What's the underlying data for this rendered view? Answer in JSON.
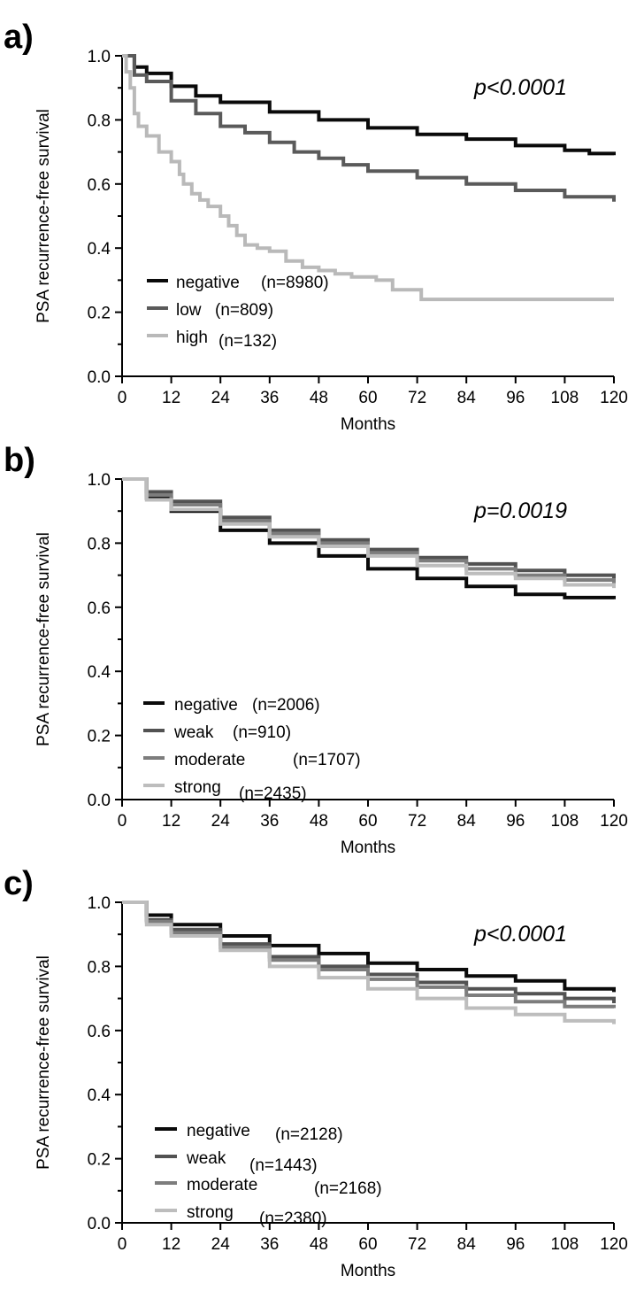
{
  "chart_data": [
    {
      "type": "line",
      "panel_label": "a)",
      "annotation": "p<0.0001",
      "xlabel": "Months",
      "ylabel": "PSA recurrence-free survival",
      "xlim": [
        0,
        120
      ],
      "ylim": [
        0,
        1
      ],
      "xticks": [
        "0",
        "12",
        "24",
        "36",
        "48",
        "60",
        "72",
        "84",
        "96",
        "108",
        "120"
      ],
      "yticks": [
        "0.0",
        "0.2",
        "0.4",
        "0.6",
        "0.8",
        "1.0"
      ],
      "grid": false,
      "legend_position": "bottom-left",
      "series": [
        {
          "name": "negative",
          "n_label": "(n=8980)",
          "color": "#0a0a0a",
          "x": [
            0,
            3,
            6,
            12,
            18,
            24,
            36,
            48,
            60,
            72,
            84,
            96,
            108,
            114,
            120
          ],
          "y": [
            1.0,
            0.965,
            0.945,
            0.905,
            0.875,
            0.855,
            0.825,
            0.8,
            0.775,
            0.755,
            0.74,
            0.72,
            0.705,
            0.695,
            0.69
          ]
        },
        {
          "name": "low",
          "n_label": "(n=809)",
          "color": "#5a5a5a",
          "x": [
            0,
            3,
            6,
            12,
            18,
            24,
            30,
            36,
            42,
            48,
            54,
            60,
            72,
            84,
            96,
            108,
            120
          ],
          "y": [
            1.0,
            0.94,
            0.92,
            0.86,
            0.82,
            0.78,
            0.76,
            0.73,
            0.7,
            0.68,
            0.66,
            0.64,
            0.62,
            0.6,
            0.58,
            0.56,
            0.545
          ]
        },
        {
          "name": "high",
          "n_label": "(n=132)",
          "color": "#b9b9b9",
          "x": [
            0,
            1,
            2,
            3,
            4,
            6,
            9,
            12,
            14,
            15,
            17,
            19,
            21,
            24,
            26,
            28,
            30,
            33,
            36,
            40,
            44,
            48,
            52,
            56,
            60,
            62,
            66,
            70,
            72,
            73,
            84,
            96,
            120
          ],
          "y": [
            1.0,
            0.95,
            0.9,
            0.82,
            0.78,
            0.75,
            0.7,
            0.67,
            0.63,
            0.6,
            0.57,
            0.55,
            0.53,
            0.5,
            0.47,
            0.44,
            0.41,
            0.4,
            0.39,
            0.36,
            0.34,
            0.33,
            0.32,
            0.31,
            0.31,
            0.3,
            0.27,
            0.27,
            0.27,
            0.24,
            0.24,
            0.24,
            0.24
          ]
        }
      ]
    },
    {
      "type": "line",
      "panel_label": "b)",
      "annotation": "p=0.0019",
      "xlabel": "Months",
      "ylabel": "PSA recurrence-free survival",
      "xlim": [
        0,
        120
      ],
      "ylim": [
        0,
        1
      ],
      "xticks": [
        "0",
        "12",
        "24",
        "36",
        "48",
        "60",
        "72",
        "84",
        "96",
        "108",
        "120"
      ],
      "yticks": [
        "0.0",
        "0.2",
        "0.4",
        "0.6",
        "0.8",
        "1.0"
      ],
      "grid": false,
      "legend_position": "bottom-left",
      "series": [
        {
          "name": "negative",
          "n_label": "(n=2006)",
          "color": "#0a0a0a",
          "x": [
            0,
            6,
            12,
            24,
            36,
            48,
            60,
            72,
            84,
            96,
            108,
            120
          ],
          "y": [
            1.0,
            0.94,
            0.9,
            0.84,
            0.8,
            0.76,
            0.72,
            0.69,
            0.665,
            0.64,
            0.63,
            0.625
          ]
        },
        {
          "name": "weak",
          "n_label": "(n=910)",
          "color": "#525252",
          "x": [
            0,
            6,
            12,
            24,
            36,
            48,
            60,
            72,
            84,
            96,
            108,
            120
          ],
          "y": [
            1.0,
            0.96,
            0.93,
            0.88,
            0.84,
            0.81,
            0.78,
            0.755,
            0.735,
            0.715,
            0.7,
            0.685
          ]
        },
        {
          "name": "moderate",
          "n_label": "(n=1707)",
          "color": "#7d7d7d",
          "x": [
            0,
            6,
            12,
            24,
            36,
            48,
            60,
            72,
            84,
            96,
            108,
            120
          ],
          "y": [
            1.0,
            0.95,
            0.92,
            0.87,
            0.83,
            0.8,
            0.77,
            0.745,
            0.72,
            0.7,
            0.685,
            0.675
          ]
        },
        {
          "name": "strong",
          "n_label": "(n=2435)",
          "color": "#bdbdbd",
          "x": [
            0,
            6,
            12,
            24,
            36,
            48,
            60,
            72,
            84,
            96,
            108,
            120
          ],
          "y": [
            1.0,
            0.935,
            0.905,
            0.86,
            0.82,
            0.79,
            0.76,
            0.73,
            0.705,
            0.69,
            0.67,
            0.66
          ]
        }
      ]
    },
    {
      "type": "line",
      "panel_label": "c)",
      "annotation": "p<0.0001",
      "xlabel": "Months",
      "ylabel": "PSA recurrence-free survival",
      "xlim": [
        0,
        120
      ],
      "ylim": [
        0,
        1
      ],
      "xticks": [
        "0",
        "12",
        "24",
        "36",
        "48",
        "60",
        "72",
        "84",
        "96",
        "108",
        "120"
      ],
      "yticks": [
        "0.0",
        "0.2",
        "0.4",
        "0.6",
        "0.8",
        "1.0"
      ],
      "grid": false,
      "legend_position": "bottom-left",
      "series": [
        {
          "name": "negative",
          "n_label": "(n=2128)",
          "color": "#0a0a0a",
          "x": [
            0,
            6,
            12,
            24,
            36,
            48,
            60,
            72,
            84,
            96,
            108,
            120
          ],
          "y": [
            1.0,
            0.96,
            0.93,
            0.895,
            0.865,
            0.84,
            0.81,
            0.79,
            0.77,
            0.755,
            0.73,
            0.72
          ]
        },
        {
          "name": "weak",
          "n_label": "(n=1443)",
          "color": "#525252",
          "x": [
            0,
            6,
            12,
            24,
            36,
            48,
            60,
            72,
            84,
            96,
            108,
            120
          ],
          "y": [
            1.0,
            0.945,
            0.915,
            0.87,
            0.83,
            0.8,
            0.775,
            0.75,
            0.73,
            0.715,
            0.7,
            0.685
          ]
        },
        {
          "name": "moderate",
          "n_label": "(n=2168)",
          "color": "#7d7d7d",
          "x": [
            0,
            6,
            12,
            24,
            36,
            48,
            60,
            72,
            84,
            96,
            108,
            120
          ],
          "y": [
            1.0,
            0.94,
            0.905,
            0.86,
            0.82,
            0.79,
            0.76,
            0.735,
            0.71,
            0.69,
            0.675,
            0.67
          ]
        },
        {
          "name": "strong",
          "n_label": "(n=2380)",
          "color": "#bdbdbd",
          "x": [
            0,
            6,
            12,
            24,
            36,
            48,
            60,
            72,
            84,
            96,
            108,
            120
          ],
          "y": [
            1.0,
            0.93,
            0.895,
            0.85,
            0.8,
            0.765,
            0.73,
            0.7,
            0.67,
            0.65,
            0.63,
            0.62
          ]
        }
      ]
    }
  ]
}
